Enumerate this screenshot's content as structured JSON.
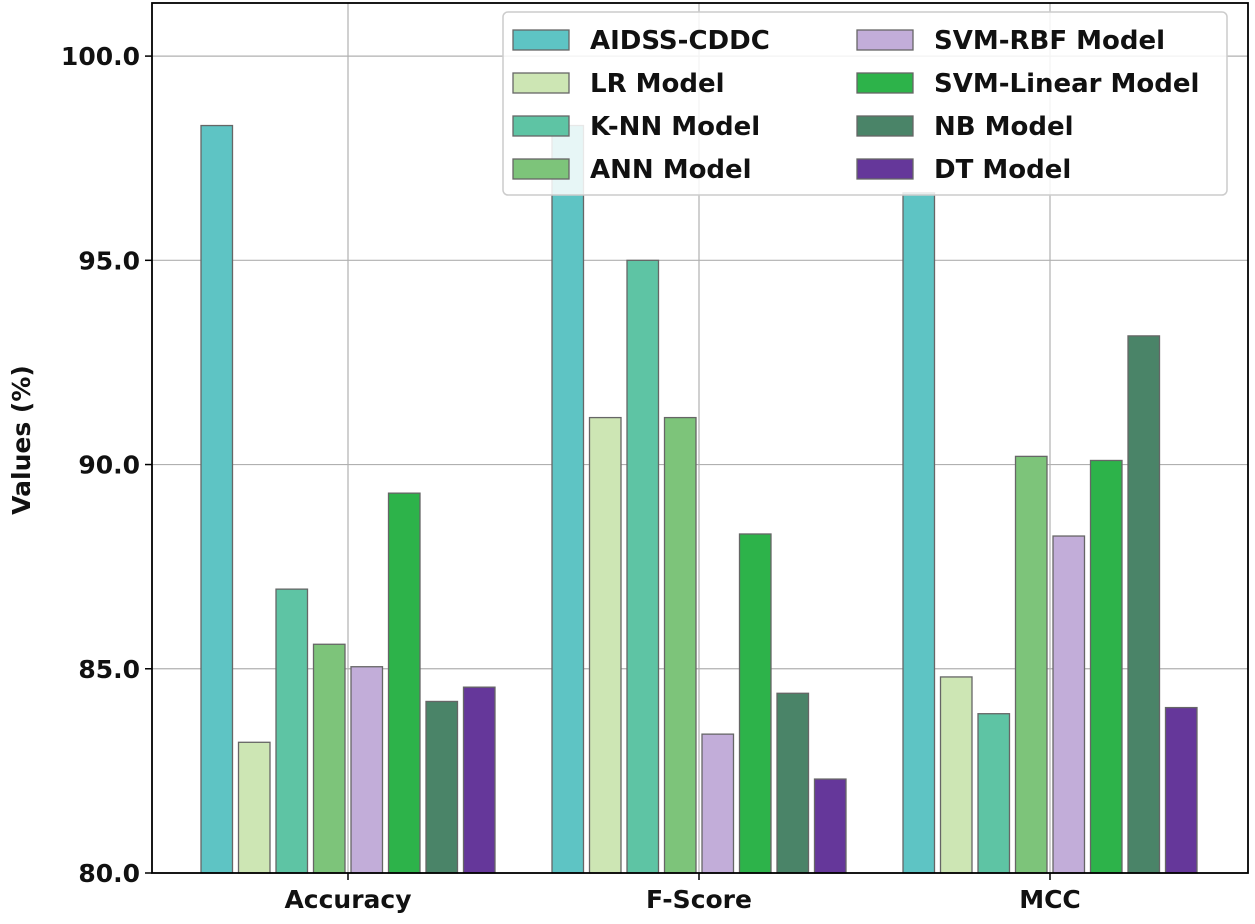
{
  "chart_data": {
    "type": "bar",
    "title": "",
    "xlabel": "",
    "ylabel": "Values (%)",
    "ylim": [
      80,
      101.3
    ],
    "yticks": [
      "80.0",
      "85.0",
      "90.0",
      "95.0",
      "100.0"
    ],
    "ytick_values": [
      80,
      85,
      90,
      95,
      100
    ],
    "grid": true,
    "legend_position": "top-right",
    "categories": [
      "Accuracy",
      "F-Score",
      "MCC"
    ],
    "series": [
      {
        "name": "AIDSS-CDDC",
        "color": "#5ec4c4",
        "values": [
          98.3,
          98.3,
          96.65
        ]
      },
      {
        "name": "LR Model",
        "color": "#cde6b4",
        "values": [
          83.2,
          91.15,
          84.8
        ]
      },
      {
        "name": "K-NN Model",
        "color": "#5ec4a4",
        "values": [
          86.95,
          95.0,
          83.9
        ]
      },
      {
        "name": "ANN Model",
        "color": "#7dc47a",
        "values": [
          85.6,
          91.15,
          90.2
        ]
      },
      {
        "name": "SVM-RBF Model",
        "color": "#c2add9",
        "values": [
          85.05,
          83.4,
          88.25
        ]
      },
      {
        "name": "SVM-Linear Model",
        "color": "#2db34a",
        "values": [
          89.3,
          88.3,
          90.1
        ]
      },
      {
        "name": "NB Model",
        "color": "#4a8468",
        "values": [
          84.2,
          84.4,
          93.15
        ]
      },
      {
        "name": "DT Model",
        "color": "#65379a",
        "values": [
          84.55,
          82.3,
          84.05
        ]
      }
    ]
  }
}
